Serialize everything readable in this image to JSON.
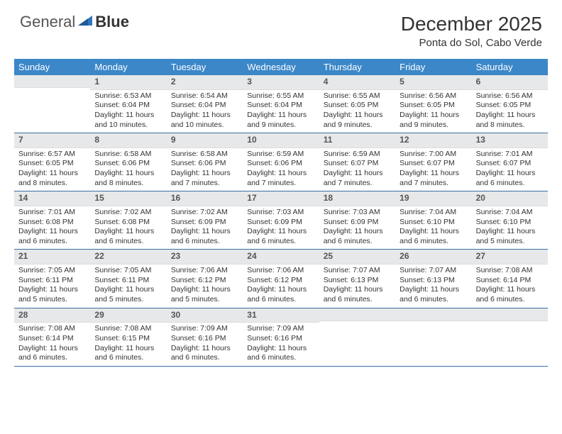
{
  "brand": {
    "part1": "General",
    "part2": "Blue"
  },
  "title": "December 2025",
  "location": "Ponta do Sol, Cabo Verde",
  "colors": {
    "header_bg": "#3b87c8",
    "header_text": "#ffffff",
    "daynum_bg": "#e7e8e9",
    "week_border": "#3b6fa0",
    "text": "#333333",
    "logo_blue": "#2f78bf"
  },
  "dayNames": [
    "Sunday",
    "Monday",
    "Tuesday",
    "Wednesday",
    "Thursday",
    "Friday",
    "Saturday"
  ],
  "weeks": [
    [
      {
        "n": "",
        "sr": "",
        "ss": "",
        "dl": ""
      },
      {
        "n": "1",
        "sr": "Sunrise: 6:53 AM",
        "ss": "Sunset: 6:04 PM",
        "dl": "Daylight: 11 hours and 10 minutes."
      },
      {
        "n": "2",
        "sr": "Sunrise: 6:54 AM",
        "ss": "Sunset: 6:04 PM",
        "dl": "Daylight: 11 hours and 10 minutes."
      },
      {
        "n": "3",
        "sr": "Sunrise: 6:55 AM",
        "ss": "Sunset: 6:04 PM",
        "dl": "Daylight: 11 hours and 9 minutes."
      },
      {
        "n": "4",
        "sr": "Sunrise: 6:55 AM",
        "ss": "Sunset: 6:05 PM",
        "dl": "Daylight: 11 hours and 9 minutes."
      },
      {
        "n": "5",
        "sr": "Sunrise: 6:56 AM",
        "ss": "Sunset: 6:05 PM",
        "dl": "Daylight: 11 hours and 9 minutes."
      },
      {
        "n": "6",
        "sr": "Sunrise: 6:56 AM",
        "ss": "Sunset: 6:05 PM",
        "dl": "Daylight: 11 hours and 8 minutes."
      }
    ],
    [
      {
        "n": "7",
        "sr": "Sunrise: 6:57 AM",
        "ss": "Sunset: 6:05 PM",
        "dl": "Daylight: 11 hours and 8 minutes."
      },
      {
        "n": "8",
        "sr": "Sunrise: 6:58 AM",
        "ss": "Sunset: 6:06 PM",
        "dl": "Daylight: 11 hours and 8 minutes."
      },
      {
        "n": "9",
        "sr": "Sunrise: 6:58 AM",
        "ss": "Sunset: 6:06 PM",
        "dl": "Daylight: 11 hours and 7 minutes."
      },
      {
        "n": "10",
        "sr": "Sunrise: 6:59 AM",
        "ss": "Sunset: 6:06 PM",
        "dl": "Daylight: 11 hours and 7 minutes."
      },
      {
        "n": "11",
        "sr": "Sunrise: 6:59 AM",
        "ss": "Sunset: 6:07 PM",
        "dl": "Daylight: 11 hours and 7 minutes."
      },
      {
        "n": "12",
        "sr": "Sunrise: 7:00 AM",
        "ss": "Sunset: 6:07 PM",
        "dl": "Daylight: 11 hours and 7 minutes."
      },
      {
        "n": "13",
        "sr": "Sunrise: 7:01 AM",
        "ss": "Sunset: 6:07 PM",
        "dl": "Daylight: 11 hours and 6 minutes."
      }
    ],
    [
      {
        "n": "14",
        "sr": "Sunrise: 7:01 AM",
        "ss": "Sunset: 6:08 PM",
        "dl": "Daylight: 11 hours and 6 minutes."
      },
      {
        "n": "15",
        "sr": "Sunrise: 7:02 AM",
        "ss": "Sunset: 6:08 PM",
        "dl": "Daylight: 11 hours and 6 minutes."
      },
      {
        "n": "16",
        "sr": "Sunrise: 7:02 AM",
        "ss": "Sunset: 6:09 PM",
        "dl": "Daylight: 11 hours and 6 minutes."
      },
      {
        "n": "17",
        "sr": "Sunrise: 7:03 AM",
        "ss": "Sunset: 6:09 PM",
        "dl": "Daylight: 11 hours and 6 minutes."
      },
      {
        "n": "18",
        "sr": "Sunrise: 7:03 AM",
        "ss": "Sunset: 6:09 PM",
        "dl": "Daylight: 11 hours and 6 minutes."
      },
      {
        "n": "19",
        "sr": "Sunrise: 7:04 AM",
        "ss": "Sunset: 6:10 PM",
        "dl": "Daylight: 11 hours and 6 minutes."
      },
      {
        "n": "20",
        "sr": "Sunrise: 7:04 AM",
        "ss": "Sunset: 6:10 PM",
        "dl": "Daylight: 11 hours and 5 minutes."
      }
    ],
    [
      {
        "n": "21",
        "sr": "Sunrise: 7:05 AM",
        "ss": "Sunset: 6:11 PM",
        "dl": "Daylight: 11 hours and 5 minutes."
      },
      {
        "n": "22",
        "sr": "Sunrise: 7:05 AM",
        "ss": "Sunset: 6:11 PM",
        "dl": "Daylight: 11 hours and 5 minutes."
      },
      {
        "n": "23",
        "sr": "Sunrise: 7:06 AM",
        "ss": "Sunset: 6:12 PM",
        "dl": "Daylight: 11 hours and 5 minutes."
      },
      {
        "n": "24",
        "sr": "Sunrise: 7:06 AM",
        "ss": "Sunset: 6:12 PM",
        "dl": "Daylight: 11 hours and 6 minutes."
      },
      {
        "n": "25",
        "sr": "Sunrise: 7:07 AM",
        "ss": "Sunset: 6:13 PM",
        "dl": "Daylight: 11 hours and 6 minutes."
      },
      {
        "n": "26",
        "sr": "Sunrise: 7:07 AM",
        "ss": "Sunset: 6:13 PM",
        "dl": "Daylight: 11 hours and 6 minutes."
      },
      {
        "n": "27",
        "sr": "Sunrise: 7:08 AM",
        "ss": "Sunset: 6:14 PM",
        "dl": "Daylight: 11 hours and 6 minutes."
      }
    ],
    [
      {
        "n": "28",
        "sr": "Sunrise: 7:08 AM",
        "ss": "Sunset: 6:14 PM",
        "dl": "Daylight: 11 hours and 6 minutes."
      },
      {
        "n": "29",
        "sr": "Sunrise: 7:08 AM",
        "ss": "Sunset: 6:15 PM",
        "dl": "Daylight: 11 hours and 6 minutes."
      },
      {
        "n": "30",
        "sr": "Sunrise: 7:09 AM",
        "ss": "Sunset: 6:16 PM",
        "dl": "Daylight: 11 hours and 6 minutes."
      },
      {
        "n": "31",
        "sr": "Sunrise: 7:09 AM",
        "ss": "Sunset: 6:16 PM",
        "dl": "Daylight: 11 hours and 6 minutes."
      },
      {
        "n": "",
        "sr": "",
        "ss": "",
        "dl": ""
      },
      {
        "n": "",
        "sr": "",
        "ss": "",
        "dl": ""
      },
      {
        "n": "",
        "sr": "",
        "ss": "",
        "dl": ""
      }
    ]
  ]
}
